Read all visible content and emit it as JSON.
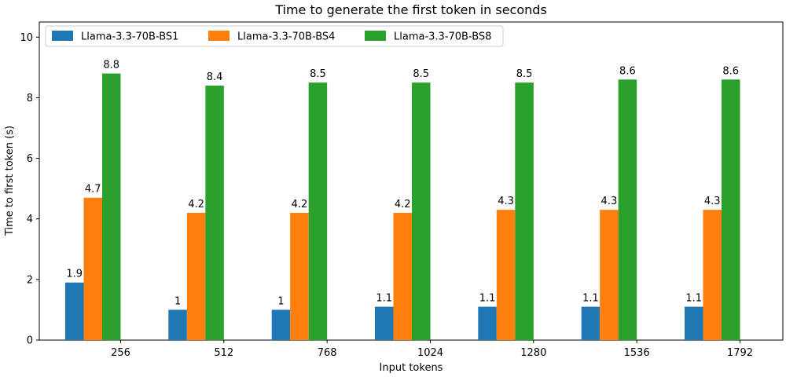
{
  "chart_data": {
    "type": "bar",
    "title": "Time to generate the first token in seconds",
    "xlabel": "Input tokens",
    "ylabel": "Time to first token (s)",
    "categories": [
      "256",
      "512",
      "768",
      "1024",
      "1280",
      "1536",
      "1792"
    ],
    "ylim": [
      0,
      10.5
    ],
    "yticks": [
      0,
      2,
      4,
      6,
      8,
      10
    ],
    "series": [
      {
        "name": "Llama-3.3-70B-BS1",
        "color": "#1f77b4",
        "values": [
          1.9,
          1,
          1,
          1.1,
          1.1,
          1.1,
          1.1
        ]
      },
      {
        "name": "Llama-3.3-70B-BS4",
        "color": "#ff7f0e",
        "values": [
          4.7,
          4.2,
          4.2,
          4.2,
          4.3,
          4.3,
          4.3
        ]
      },
      {
        "name": "Llama-3.3-70B-BS8",
        "color": "#2ca02c",
        "values": [
          8.8,
          8.4,
          8.5,
          8.5,
          8.5,
          8.6,
          8.6
        ]
      }
    ],
    "legend_position": "top-left",
    "grid": false
  }
}
